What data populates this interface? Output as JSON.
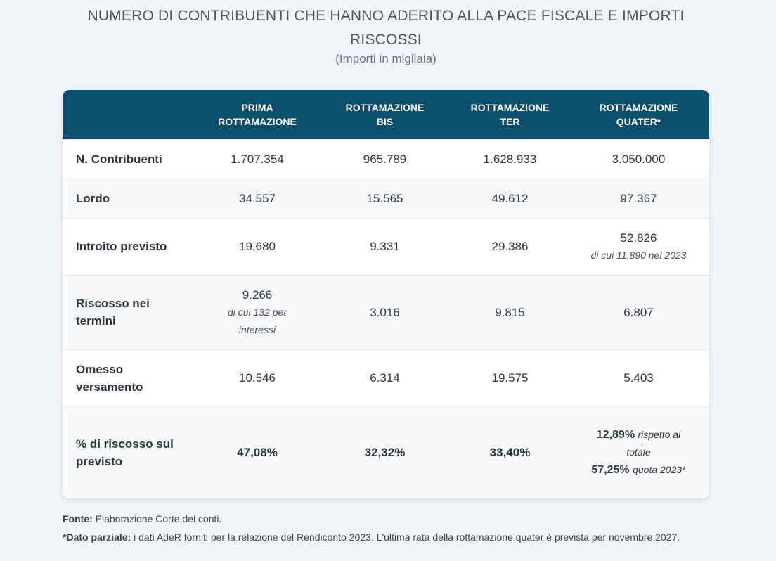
{
  "title": "NUMERO DI CONTRIBUENTI CHE HANNO ADERITO ALLA PACE FISCALE E IMPORTI RISCOSSI",
  "subtitle": "(Importi in migliaia)",
  "table": {
    "headers": [
      {
        "line1": "PRIMA",
        "line2": "ROTTAMAZIONE"
      },
      {
        "line1": "ROTTAMAZIONE",
        "line2": "BIS"
      },
      {
        "line1": "ROTTAMAZIONE",
        "line2": "TER"
      },
      {
        "line1": "ROTTAMAZIONE",
        "line2": "QUATER*"
      }
    ],
    "rows": {
      "contribuenti": {
        "label": "N. Contribuenti",
        "values": [
          "1.707.354",
          "965.789",
          "1.628.933",
          "3.050.000"
        ]
      },
      "lordo": {
        "label": "Lordo",
        "values": [
          "34.557",
          "15.565",
          "49.612",
          "97.367"
        ]
      },
      "introito": {
        "label": "Introito previsto",
        "values": [
          "19.680",
          "9.331",
          "29.386",
          "52.826"
        ],
        "note_quater": "di cui 11.890 nel 2023"
      },
      "riscosso": {
        "label": "Riscosso nei termini",
        "values": [
          "9.266",
          "3.016",
          "9.815",
          "6.807"
        ],
        "note_prima": "di cui 132 per interessi"
      },
      "omesso": {
        "label": "Omesso versamento",
        "values": [
          "10.546",
          "6.314",
          "19.575",
          "5.403"
        ]
      },
      "percentuale": {
        "label": "% di riscosso sul previsto",
        "values": [
          "47,08%",
          "32,32%",
          "33,40%"
        ],
        "quater": [
          {
            "value": "12,89%",
            "text": "rispetto al totale"
          },
          {
            "value": "57,25%",
            "text": "quota 2023*"
          }
        ]
      }
    }
  },
  "footer": {
    "fonte_label": "Fonte:",
    "fonte_text": "Elaborazione Corte dei conti.",
    "dato_label": "*Dato parziale:",
    "dato_text": "i dati AdeR forniti per la relazione del Rendiconto 2023. L'ultima rata della rottamazione quater è prevista per novembre 2027."
  }
}
